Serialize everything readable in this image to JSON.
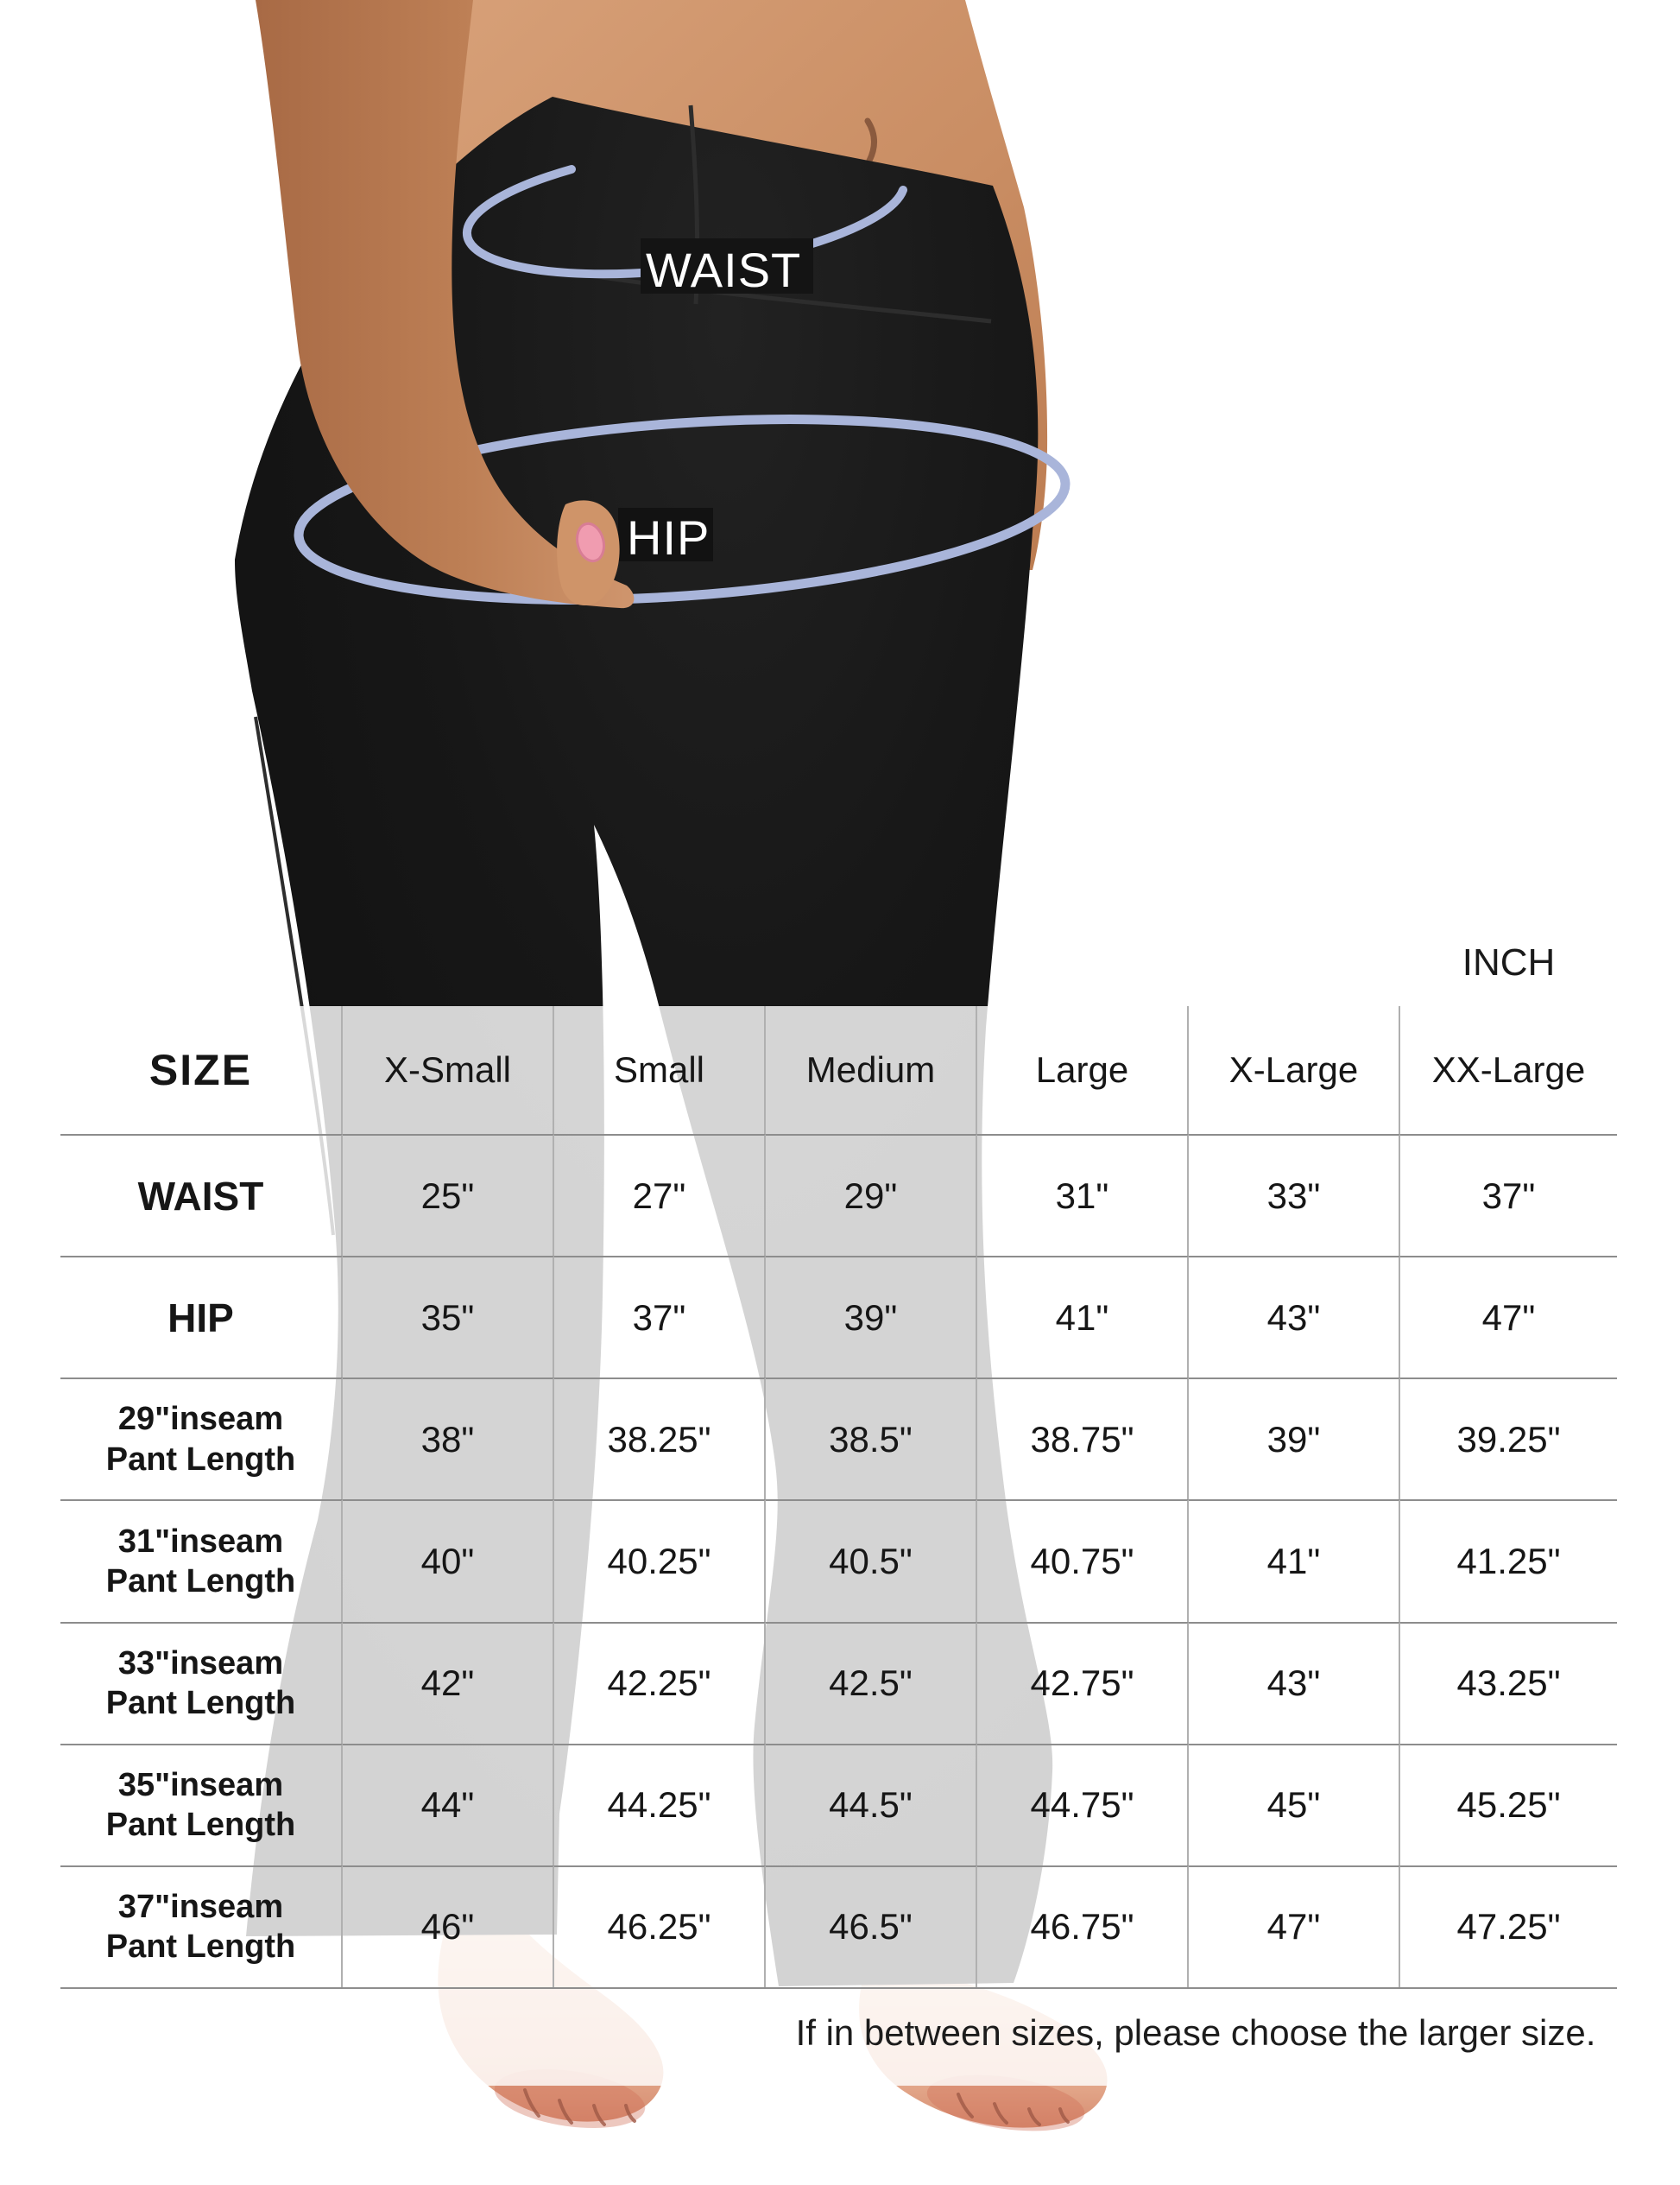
{
  "photo": {
    "waist_label": "WAIST",
    "hip_label": "HIP"
  },
  "chart_data": {
    "type": "table",
    "unit_label": "INCH",
    "columns": [
      "SIZE",
      "X-Small",
      "Small",
      "Medium",
      "Large",
      "X-Large",
      "XX-Large"
    ],
    "rows": [
      {
        "label": "WAIST",
        "values": [
          "25\"",
          "27\"",
          "29\"",
          "31\"",
          "33\"",
          "37\""
        ]
      },
      {
        "label": "HIP",
        "values": [
          "35\"",
          "37\"",
          "39\"",
          "41\"",
          "43\"",
          "47\""
        ]
      },
      {
        "label": "29\"inseam\nPant Length",
        "values": [
          "38\"",
          "38.25\"",
          "38.5\"",
          "38.75\"",
          "39\"",
          "39.25\""
        ]
      },
      {
        "label": "31\"inseam\nPant Length",
        "values": [
          "40\"",
          "40.25\"",
          "40.5\"",
          "40.75\"",
          "41\"",
          "41.25\""
        ]
      },
      {
        "label": "33\"inseam\nPant Length",
        "values": [
          "42\"",
          "42.25\"",
          "42.5\"",
          "42.75\"",
          "43\"",
          "43.25\""
        ]
      },
      {
        "label": "35\"inseam\nPant Length",
        "values": [
          "44\"",
          "44.25\"",
          "44.5\"",
          "44.75\"",
          "45\"",
          "45.25\""
        ]
      },
      {
        "label": "37\"inseam\nPant Length",
        "values": [
          "46\"",
          "46.25\"",
          "46.5\"",
          "46.75\"",
          "47\"",
          "47.25\""
        ]
      }
    ],
    "note": "If in between sizes, please choose the larger size."
  },
  "colors": {
    "ellipse_periwinkle": "#a9b5da",
    "leggings_black": "#141414",
    "skin_tan": "#c9916c",
    "nail_pink": "#f09cb0",
    "table_line_horizontal": "#8d8d8d",
    "table_line_vertical": "#b0b0b0"
  }
}
